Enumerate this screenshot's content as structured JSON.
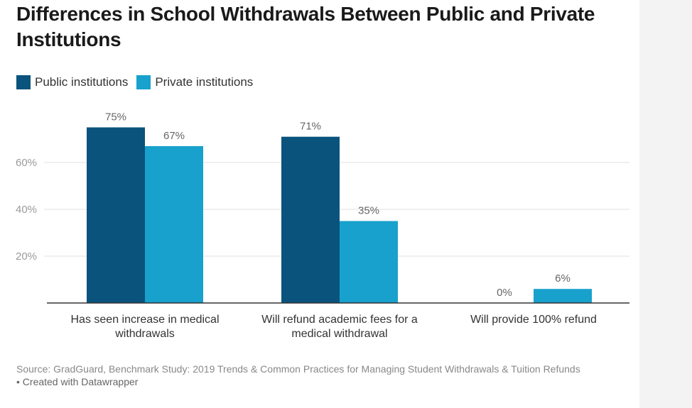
{
  "chart_data": {
    "type": "bar",
    "title": "Differences in School Withdrawals Between Public and Private Institutions",
    "categories": [
      [
        "Has seen increase in medical",
        "withdrawals"
      ],
      [
        "Will refund academic fees for a",
        "medical withdrawal"
      ],
      [
        "Will provide 100% refund"
      ]
    ],
    "series": [
      {
        "name": "Public institutions",
        "color": "#09537d",
        "values": [
          75,
          71,
          0
        ]
      },
      {
        "name": "Private institutions",
        "color": "#18a1cd",
        "values": [
          67,
          35,
          6
        ]
      }
    ],
    "value_suffix": "%",
    "yticks": [
      20,
      40,
      60
    ],
    "ytick_labels": [
      "20%",
      "40%",
      "60%"
    ],
    "ylim": [
      0,
      80
    ],
    "grid": true,
    "legend_position": "top-left"
  },
  "source": "Source: GradGuard, Benchmark Study: 2019 Trends & Common Practices for Managing Student Withdrawals & Tuition Refunds",
  "credit": "• Created with Datawrapper"
}
